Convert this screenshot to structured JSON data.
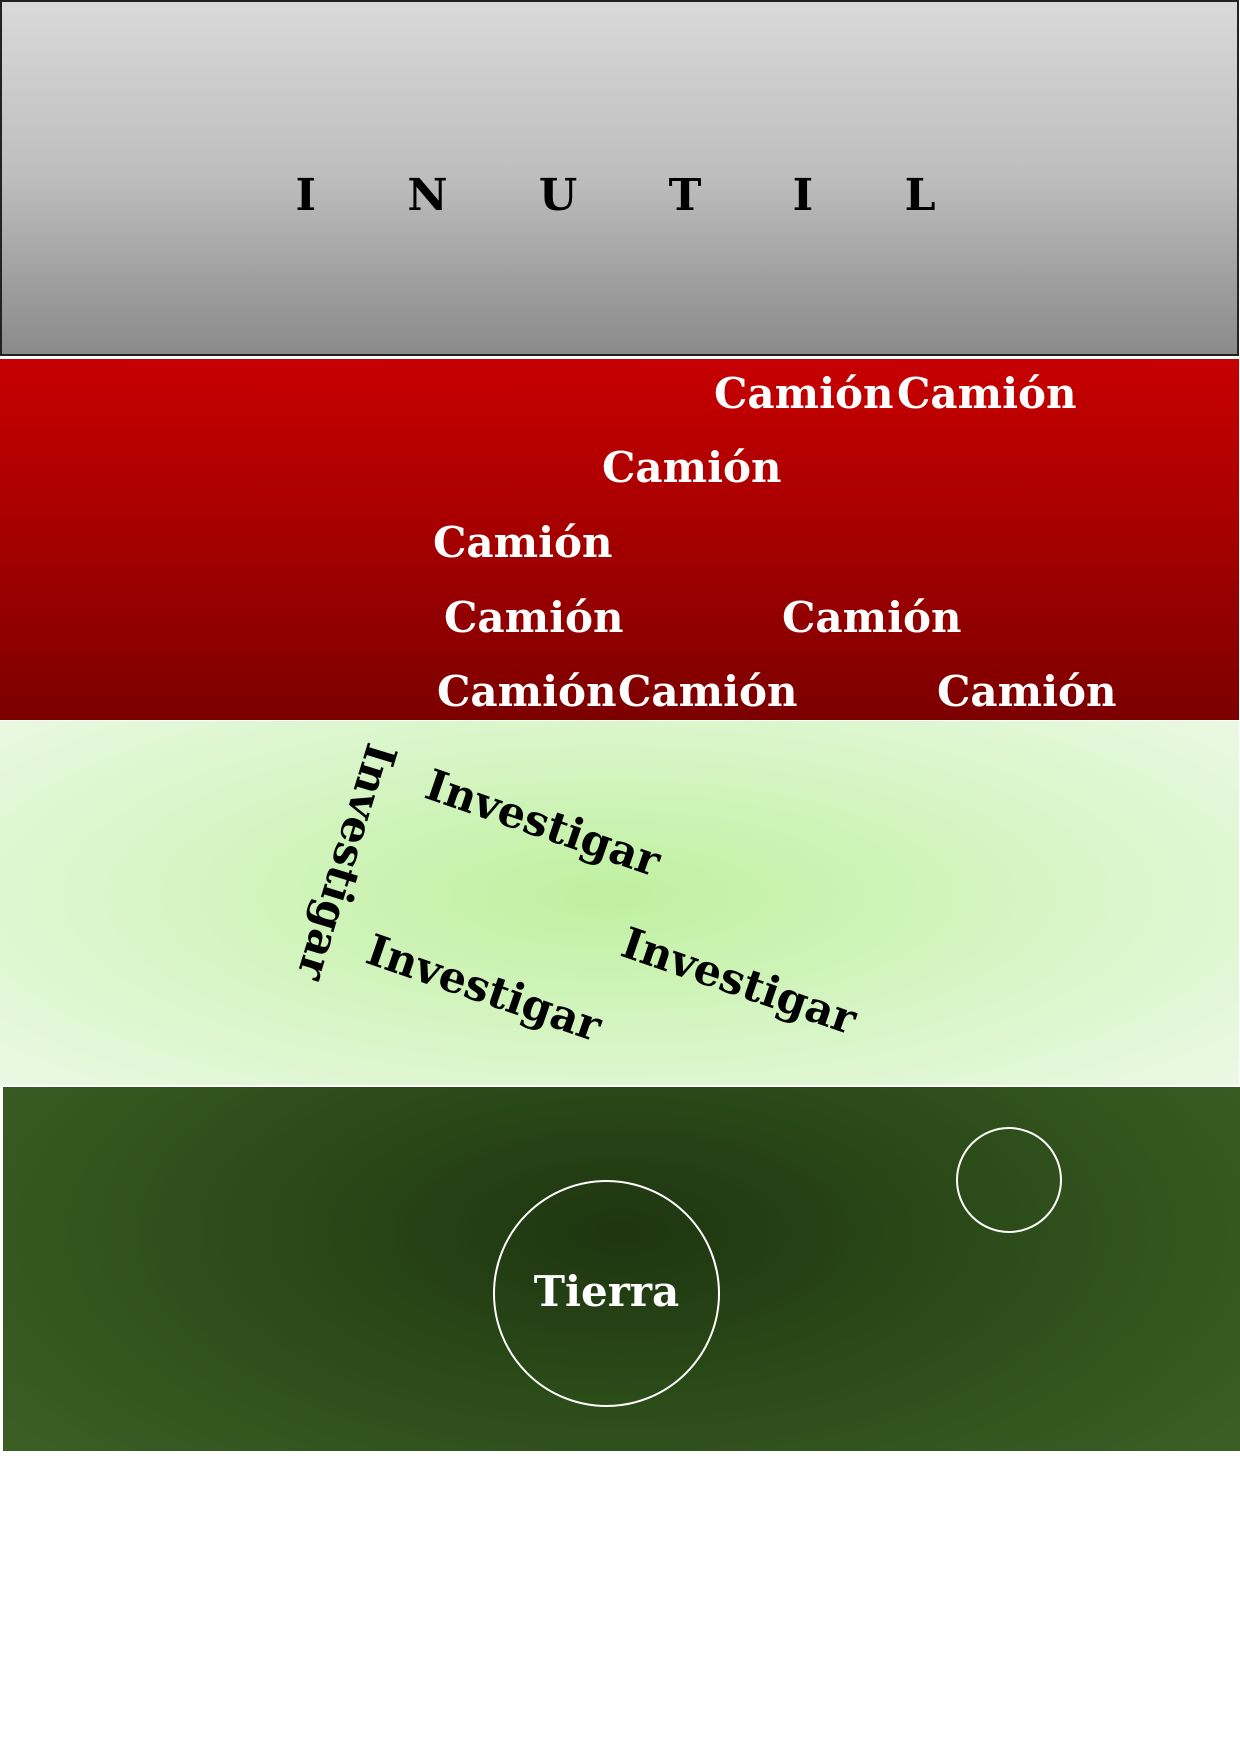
{
  "title": "I N U T I L",
  "red_band": {
    "words": [
      "Camión",
      "Camión",
      "Camión",
      "Camión",
      "Camión",
      "Camión",
      "Camión",
      "Camión",
      "Camión"
    ]
  },
  "green_band": {
    "words": [
      "Investigar",
      "Investigar",
      "Investigar",
      "Investigar"
    ]
  },
  "dark_band": {
    "center_label": "Tierra"
  },
  "colors": {
    "title_band": "#bdbdbd",
    "red_band": "#a80000",
    "light_green_band": "#bff0a0",
    "dark_green_band": "#2a4a18",
    "camion_text": "#ffffff",
    "investigar_text": "#000000",
    "circle_stroke": "#ffffff"
  }
}
